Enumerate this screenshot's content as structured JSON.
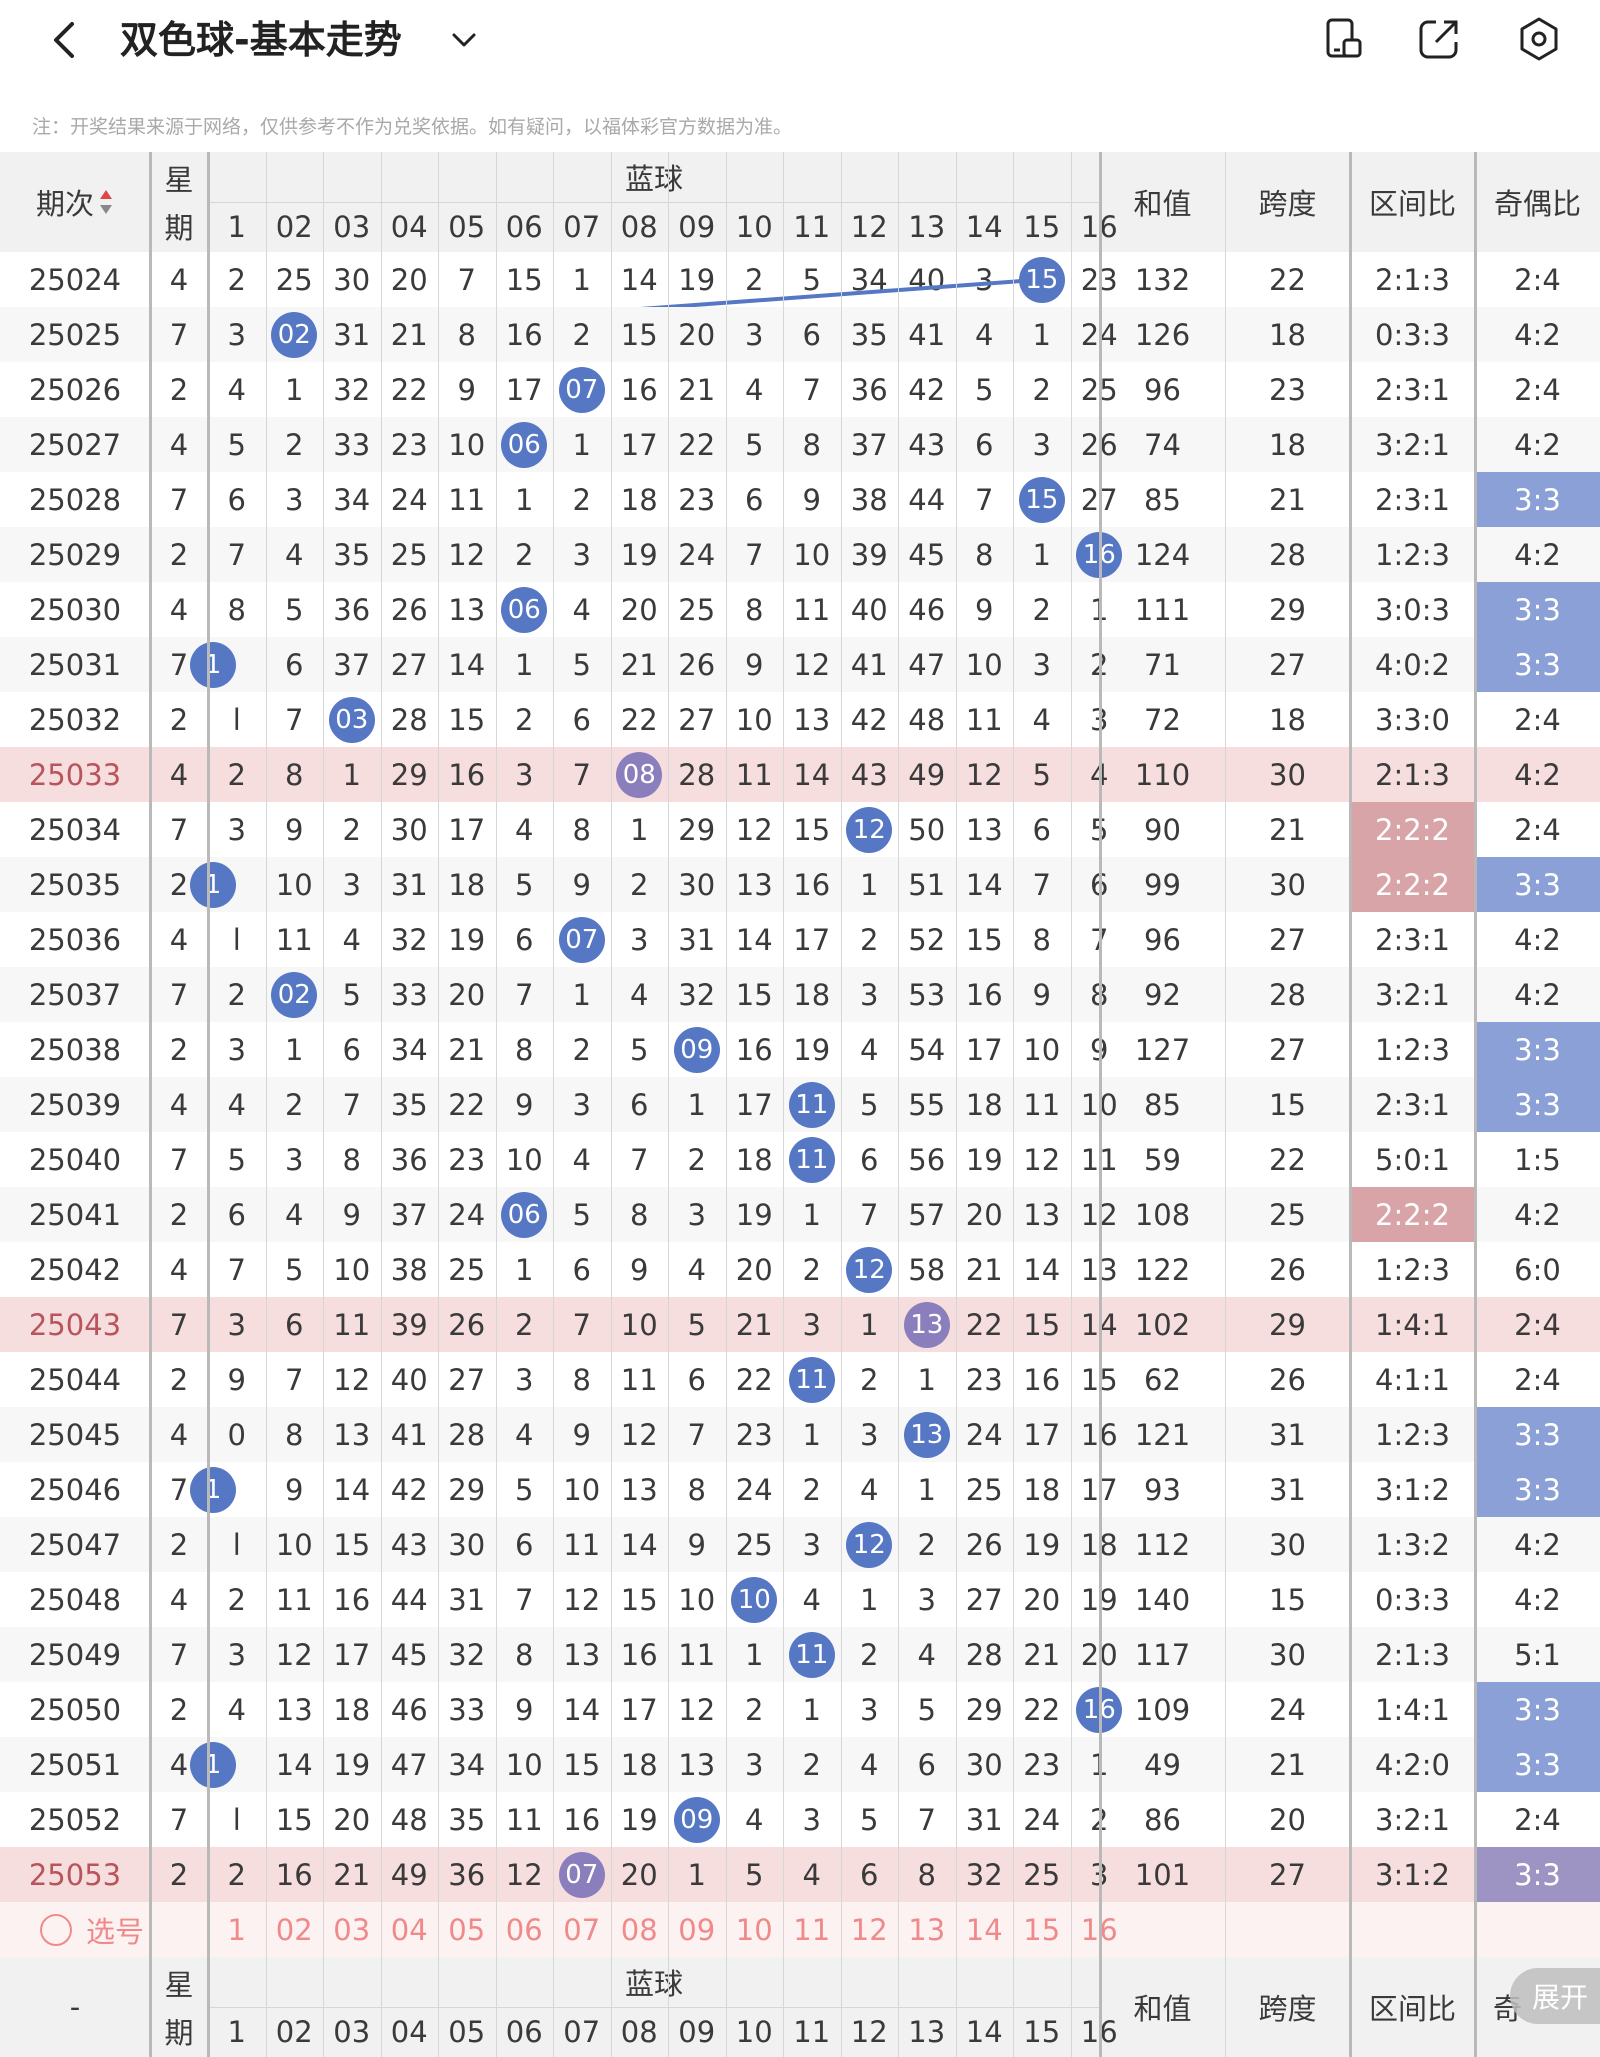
{
  "header": {
    "title": "双色球-基本走势"
  },
  "notice": "注：开奖结果来源于网络，仅供参考不作为兑奖依据。如有疑问，以福体彩官方数据为准。",
  "columns": {
    "period": "期次",
    "weekday_a": "星",
    "weekday_b": "期",
    "blue_group": "蓝球",
    "sum": "和值",
    "span": "跨度",
    "zone_ratio": "区间比",
    "odd_even": "奇偶比"
  },
  "blue_headers": [
    "1",
    "02",
    "03",
    "04",
    "05",
    "06",
    "07",
    "08",
    "09",
    "10",
    "11",
    "12",
    "13",
    "14",
    "15",
    "16"
  ],
  "rows": [
    {
      "period": "25024",
      "wd": "4",
      "cells": [
        "2",
        "25",
        "30",
        "20",
        "7",
        "15",
        "1",
        "14",
        "19",
        "2",
        "5",
        "34",
        "40",
        "3",
        "15",
        "23"
      ],
      "hit": 15,
      "sum": "132",
      "span": "22",
      "zone": "2:1:3",
      "oe": "2:4"
    },
    {
      "period": "25025",
      "wd": "7",
      "cells": [
        "3",
        "02",
        "31",
        "21",
        "8",
        "16",
        "2",
        "15",
        "20",
        "3",
        "6",
        "35",
        "41",
        "4",
        "1",
        "24"
      ],
      "hit": 2,
      "sum": "126",
      "span": "18",
      "zone": "0:3:3",
      "oe": "4:2"
    },
    {
      "period": "25026",
      "wd": "2",
      "cells": [
        "4",
        "1",
        "32",
        "22",
        "9",
        "17",
        "07",
        "16",
        "21",
        "4",
        "7",
        "36",
        "42",
        "5",
        "2",
        "25"
      ],
      "hit": 7,
      "sum": "96",
      "span": "23",
      "zone": "2:3:1",
      "oe": "2:4"
    },
    {
      "period": "25027",
      "wd": "4",
      "cells": [
        "5",
        "2",
        "33",
        "23",
        "10",
        "06",
        "1",
        "17",
        "22",
        "5",
        "8",
        "37",
        "43",
        "6",
        "3",
        "26"
      ],
      "hit": 6,
      "sum": "74",
      "span": "18",
      "zone": "3:2:1",
      "oe": "4:2"
    },
    {
      "period": "25028",
      "wd": "7",
      "cells": [
        "6",
        "3",
        "34",
        "24",
        "11",
        "1",
        "2",
        "18",
        "23",
        "6",
        "9",
        "38",
        "44",
        "7",
        "15",
        "27"
      ],
      "hit": 15,
      "sum": "85",
      "span": "21",
      "zone": "2:3:1",
      "oe": "3:3",
      "oeHL": "blue"
    },
    {
      "period": "25029",
      "wd": "2",
      "cells": [
        "7",
        "4",
        "35",
        "25",
        "12",
        "2",
        "3",
        "19",
        "24",
        "7",
        "10",
        "39",
        "45",
        "8",
        "1",
        "16"
      ],
      "hit": 16,
      "sum": "124",
      "span": "28",
      "zone": "1:2:3",
      "oe": "4:2"
    },
    {
      "period": "25030",
      "wd": "4",
      "cells": [
        "8",
        "5",
        "36",
        "26",
        "13",
        "06",
        "4",
        "20",
        "25",
        "8",
        "11",
        "40",
        "46",
        "9",
        "2",
        "1"
      ],
      "hit": 6,
      "sum": "111",
      "span": "29",
      "zone": "3:0:3",
      "oe": "3:3",
      "oeHL": "blue"
    },
    {
      "period": "25031",
      "wd": "7",
      "cells": [
        "1",
        "6",
        "37",
        "27",
        "14",
        "1",
        "5",
        "21",
        "26",
        "9",
        "12",
        "41",
        "47",
        "10",
        "3",
        "2"
      ],
      "hit": 1,
      "sum": "71",
      "span": "27",
      "zone": "4:0:2",
      "oe": "3:3",
      "oeHL": "blue"
    },
    {
      "period": "25032",
      "wd": "2",
      "cells": [
        "l",
        "7",
        "03",
        "28",
        "15",
        "2",
        "6",
        "22",
        "27",
        "10",
        "13",
        "42",
        "48",
        "11",
        "4",
        "3"
      ],
      "hit": 3,
      "sum": "72",
      "span": "18",
      "zone": "3:3:0",
      "oe": "2:4"
    },
    {
      "period": "25033",
      "wd": "4",
      "cells": [
        "2",
        "8",
        "1",
        "29",
        "16",
        "3",
        "7",
        "08",
        "28",
        "11",
        "14",
        "43",
        "49",
        "12",
        "5",
        "4"
      ],
      "hit": 8,
      "sum": "110",
      "span": "30",
      "zone": "2:1:3",
      "oe": "4:2",
      "pink": true
    },
    {
      "period": "25034",
      "wd": "7",
      "cells": [
        "3",
        "9",
        "2",
        "30",
        "17",
        "4",
        "8",
        "1",
        "29",
        "12",
        "15",
        "12",
        "50",
        "13",
        "6",
        "5"
      ],
      "hit": 12,
      "sum": "90",
      "span": "21",
      "zone": "2:2:2",
      "zoneHL": true,
      "oe": "2:4"
    },
    {
      "period": "25035",
      "wd": "2",
      "cells": [
        "1",
        "10",
        "3",
        "31",
        "18",
        "5",
        "9",
        "2",
        "30",
        "13",
        "16",
        "1",
        "51",
        "14",
        "7",
        "6"
      ],
      "hit": 1,
      "sum": "99",
      "span": "30",
      "zone": "2:2:2",
      "zoneHL": true,
      "oe": "3:3",
      "oeHL": "blue"
    },
    {
      "period": "25036",
      "wd": "4",
      "cells": [
        "l",
        "11",
        "4",
        "32",
        "19",
        "6",
        "07",
        "3",
        "31",
        "14",
        "17",
        "2",
        "52",
        "15",
        "8",
        "7"
      ],
      "hit": 7,
      "sum": "96",
      "span": "27",
      "zone": "2:3:1",
      "oe": "4:2"
    },
    {
      "period": "25037",
      "wd": "7",
      "cells": [
        "2",
        "02",
        "5",
        "33",
        "20",
        "7",
        "1",
        "4",
        "32",
        "15",
        "18",
        "3",
        "53",
        "16",
        "9",
        "8"
      ],
      "hit": 2,
      "sum": "92",
      "span": "28",
      "zone": "3:2:1",
      "oe": "4:2"
    },
    {
      "period": "25038",
      "wd": "2",
      "cells": [
        "3",
        "1",
        "6",
        "34",
        "21",
        "8",
        "2",
        "5",
        "09",
        "16",
        "19",
        "4",
        "54",
        "17",
        "10",
        "9"
      ],
      "hit": 9,
      "sum": "127",
      "span": "27",
      "zone": "1:2:3",
      "oe": "3:3",
      "oeHL": "blue"
    },
    {
      "period": "25039",
      "wd": "4",
      "cells": [
        "4",
        "2",
        "7",
        "35",
        "22",
        "9",
        "3",
        "6",
        "1",
        "17",
        "11",
        "5",
        "55",
        "18",
        "11",
        "10"
      ],
      "hit": 11,
      "sum": "85",
      "span": "15",
      "zone": "2:3:1",
      "oe": "3:3",
      "oeHL": "blue"
    },
    {
      "period": "25040",
      "wd": "7",
      "cells": [
        "5",
        "3",
        "8",
        "36",
        "23",
        "10",
        "4",
        "7",
        "2",
        "18",
        "11",
        "6",
        "56",
        "19",
        "12",
        "11"
      ],
      "hit": 11,
      "sum": "59",
      "span": "22",
      "zone": "5:0:1",
      "oe": "1:5"
    },
    {
      "period": "25041",
      "wd": "2",
      "cells": [
        "6",
        "4",
        "9",
        "37",
        "24",
        "06",
        "5",
        "8",
        "3",
        "19",
        "1",
        "7",
        "57",
        "20",
        "13",
        "12"
      ],
      "hit": 6,
      "sum": "108",
      "span": "25",
      "zone": "2:2:2",
      "zoneHL": true,
      "oe": "4:2"
    },
    {
      "period": "25042",
      "wd": "4",
      "cells": [
        "7",
        "5",
        "10",
        "38",
        "25",
        "1",
        "6",
        "9",
        "4",
        "20",
        "2",
        "12",
        "58",
        "21",
        "14",
        "13"
      ],
      "hit": 12,
      "sum": "122",
      "span": "26",
      "zone": "1:2:3",
      "oe": "6:0"
    },
    {
      "period": "25043",
      "wd": "7",
      "cells": [
        "3",
        "6",
        "11",
        "39",
        "26",
        "2",
        "7",
        "10",
        "5",
        "21",
        "3",
        "1",
        "13",
        "22",
        "15",
        "14"
      ],
      "hit": 13,
      "sum": "102",
      "span": "29",
      "zone": "1:4:1",
      "oe": "2:4",
      "pink": true
    },
    {
      "period": "25044",
      "wd": "2",
      "cells": [
        "9",
        "7",
        "12",
        "40",
        "27",
        "3",
        "8",
        "11",
        "6",
        "22",
        "11",
        "2",
        "1",
        "23",
        "16",
        "15"
      ],
      "hit": 11,
      "sum": "62",
      "span": "26",
      "zone": "4:1:1",
      "oe": "2:4"
    },
    {
      "period": "25045",
      "wd": "4",
      "cells": [
        "0",
        "8",
        "13",
        "41",
        "28",
        "4",
        "9",
        "12",
        "7",
        "23",
        "1",
        "3",
        "13",
        "24",
        "17",
        "16"
      ],
      "hit": 13,
      "sum": "121",
      "span": "31",
      "zone": "1:2:3",
      "oe": "3:3",
      "oeHL": "blue"
    },
    {
      "period": "25046",
      "wd": "7",
      "cells": [
        "1",
        "9",
        "14",
        "42",
        "29",
        "5",
        "10",
        "13",
        "8",
        "24",
        "2",
        "4",
        "1",
        "25",
        "18",
        "17"
      ],
      "hit": 1,
      "sum": "93",
      "span": "31",
      "zone": "3:1:2",
      "oe": "3:3",
      "oeHL": "blue"
    },
    {
      "period": "25047",
      "wd": "2",
      "cells": [
        "l",
        "10",
        "15",
        "43",
        "30",
        "6",
        "11",
        "14",
        "9",
        "25",
        "3",
        "12",
        "2",
        "26",
        "19",
        "18"
      ],
      "hit": 12,
      "sum": "112",
      "span": "30",
      "zone": "1:3:2",
      "oe": "4:2"
    },
    {
      "period": "25048",
      "wd": "4",
      "cells": [
        "2",
        "11",
        "16",
        "44",
        "31",
        "7",
        "12",
        "15",
        "10",
        "10",
        "4",
        "1",
        "3",
        "27",
        "20",
        "19"
      ],
      "hit": 10,
      "sum": "140",
      "span": "15",
      "zone": "0:3:3",
      "oe": "4:2"
    },
    {
      "period": "25049",
      "wd": "7",
      "cells": [
        "3",
        "12",
        "17",
        "45",
        "32",
        "8",
        "13",
        "16",
        "11",
        "1",
        "11",
        "2",
        "4",
        "28",
        "21",
        "20"
      ],
      "hit": 11,
      "sum": "117",
      "span": "30",
      "zone": "2:1:3",
      "oe": "5:1"
    },
    {
      "period": "25050",
      "wd": "2",
      "cells": [
        "4",
        "13",
        "18",
        "46",
        "33",
        "9",
        "14",
        "17",
        "12",
        "2",
        "1",
        "3",
        "5",
        "29",
        "22",
        "16"
      ],
      "hit": 16,
      "sum": "109",
      "span": "24",
      "zone": "1:4:1",
      "oe": "3:3",
      "oeHL": "blue"
    },
    {
      "period": "25051",
      "wd": "4",
      "cells": [
        "1",
        "14",
        "19",
        "47",
        "34",
        "10",
        "15",
        "18",
        "13",
        "3",
        "2",
        "4",
        "6",
        "30",
        "23",
        "1"
      ],
      "hit": 1,
      "sum": "49",
      "span": "21",
      "zone": "4:2:0",
      "oe": "3:3",
      "oeHL": "blue"
    },
    {
      "period": "25052",
      "wd": "7",
      "cells": [
        "l",
        "15",
        "20",
        "48",
        "35",
        "11",
        "16",
        "19",
        "09",
        "4",
        "3",
        "5",
        "7",
        "31",
        "24",
        "2"
      ],
      "hit": 9,
      "sum": "86",
      "span": "20",
      "zone": "3:2:1",
      "oe": "2:4"
    },
    {
      "period": "25053",
      "wd": "2",
      "cells": [
        "2",
        "16",
        "21",
        "49",
        "36",
        "12",
        "07",
        "20",
        "1",
        "5",
        "4",
        "6",
        "8",
        "32",
        "25",
        "3"
      ],
      "hit": 7,
      "sum": "101",
      "span": "27",
      "zone": "3:1:2",
      "oe": "3:3",
      "oeHL": "purple",
      "pink": true
    }
  ],
  "select_row": {
    "label": "选号",
    "nums": [
      "1",
      "02",
      "03",
      "04",
      "05",
      "06",
      "07",
      "08",
      "09",
      "10",
      "11",
      "12",
      "13",
      "14",
      "15",
      "16"
    ]
  },
  "footer_header": {
    "period": "-",
    "weekday_a": "星",
    "weekday_b": "期",
    "blue_group": "蓝球",
    "sum": "和值",
    "span": "跨度",
    "zone_ratio": "区间比",
    "odd_even": "奇"
  },
  "expand_label": "展开",
  "colors": {
    "ball_blue": "#5677c4",
    "ball_purple": "#8a7fbc",
    "pink_row": "#f6dede",
    "zone_highlight": "#d9a4a8",
    "oe_blue": "#8aa0d6",
    "oe_purple": "#9e94c4",
    "line": "#5677c4"
  }
}
